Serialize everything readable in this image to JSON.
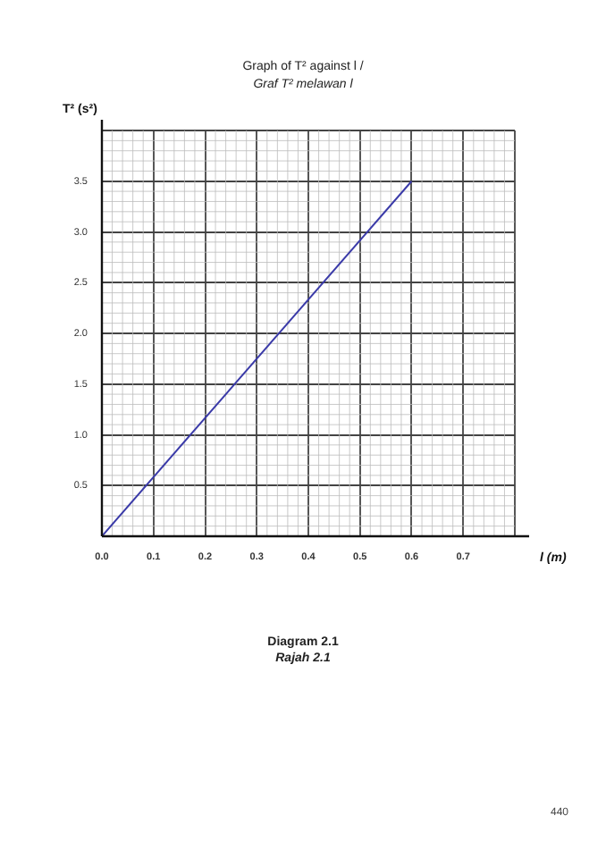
{
  "chart_data": {
    "type": "line",
    "title": "Graph of T² against l /",
    "subtitle": "Graf T² melawan l",
    "xlabel": "l (m)",
    "ylabel": "T² (s²)",
    "annotations": [
      "Diagram 2.1",
      "Rajah 2.1",
      "440"
    ],
    "x": [
      0,
      0.6
    ],
    "series": [
      {
        "color": "#3a3aa8",
        "values": [
          0,
          3.5
        ]
      }
    ],
    "xlim": [
      0,
      0.8
    ],
    "xticks": [
      {
        "value": 0,
        "label": "0.0"
      },
      0.1,
      0.2,
      0.3,
      0.4,
      0.5,
      0.6,
      0.7,
      {
        "value": 0.8,
        "label": null
      }
    ],
    "ylim": [
      0,
      4
    ],
    "yticks": [
      {
        "value": 0,
        "label": null
      },
      0.5,
      {
        "value": 1,
        "label": "1.0"
      },
      1.5,
      {
        "value": 2,
        "label": "2.0"
      },
      2.5,
      {
        "value": 3,
        "label": "3.0"
      },
      3.5,
      {
        "value": 4,
        "label": null
      }
    ],
    "grid": true,
    "legend": false,
    "marker": "none",
    "line_style": "solid"
  }
}
